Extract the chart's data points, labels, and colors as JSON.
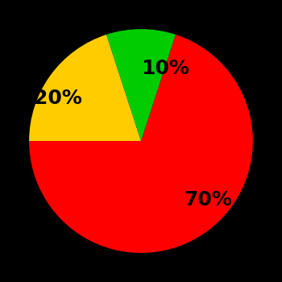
{
  "slices": [
    70,
    20,
    10
  ],
  "colors": [
    "#ff0000",
    "#ffcc00",
    "#00cc00"
  ],
  "labels": [
    "70%",
    "20%",
    "10%"
  ],
  "background_color": "#000000",
  "startangle": 72,
  "label_fontsize": 18,
  "label_fontweight": "bold",
  "label_color": "#000000",
  "labeldistance": 0.65
}
